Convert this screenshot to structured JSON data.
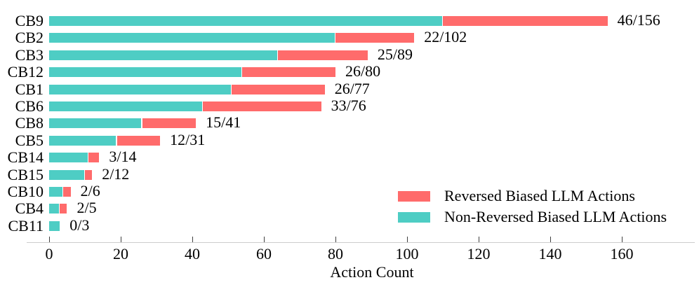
{
  "chart_data": {
    "type": "bar",
    "orientation": "horizontal",
    "stacked": true,
    "title": "",
    "xlabel": "Action Count",
    "ylabel": "",
    "categories": [
      "CB9",
      "CB2",
      "CB3",
      "CB12",
      "CB1",
      "CB6",
      "CB8",
      "CB5",
      "CB14",
      "CB15",
      "CB10",
      "CB4",
      "CB11"
    ],
    "series": [
      {
        "name": "Non-Reversed Biased LLM Actions",
        "color": "#4ECDC4",
        "values": [
          110,
          80,
          64,
          54,
          51,
          43,
          26,
          19,
          11,
          10,
          4,
          3,
          3
        ]
      },
      {
        "name": "Reversed Biased LLM Actions",
        "color": "#FF6B6B",
        "values": [
          46,
          22,
          25,
          26,
          26,
          33,
          15,
          12,
          3,
          2,
          2,
          2,
          0
        ]
      }
    ],
    "totals": [
      156,
      102,
      89,
      80,
      77,
      76,
      41,
      31,
      14,
      12,
      6,
      5,
      3
    ],
    "bar_labels": [
      "46/156",
      "22/102",
      "25/89",
      "26/80",
      "26/77",
      "33/76",
      "15/41",
      "12/31",
      "3/14",
      "2/12",
      "2/6",
      "2/5",
      "0/3"
    ],
    "x_ticks": [
      0,
      20,
      40,
      60,
      80,
      100,
      120,
      140,
      160
    ],
    "xlim": [
      0,
      180
    ],
    "grid": false,
    "legend": {
      "position": "lower right",
      "entries": [
        {
          "label": "Reversed Biased LLM Actions",
          "color": "#FF6B6B"
        },
        {
          "label": "Non-Reversed Biased LLM Actions",
          "color": "#4ECDC4"
        }
      ]
    },
    "axis_color": "#cccccc",
    "tick_color": "#404040",
    "text_color": "#000000"
  }
}
